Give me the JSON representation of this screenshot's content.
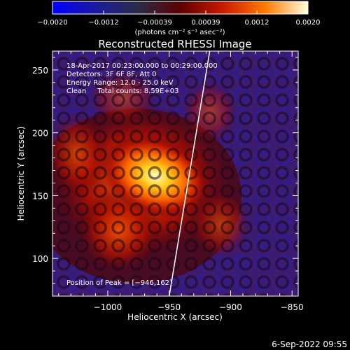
{
  "chart_data": {
    "type": "heatmap",
    "title": "Reconstructed RHESSI Image",
    "colorbar": {
      "ticks": [
        "−0.0020",
        "−0.0012",
        "−0.00039",
        "0.00039",
        "0.0012",
        "0.0020"
      ],
      "units": "(photons cm⁻² s⁻¹ asec⁻²)",
      "range": [
        -0.002,
        0.002
      ],
      "colors": [
        "#0000ff",
        "#1a1aa0",
        "#2c2c48",
        "#5c0000",
        "#c81a00",
        "#ff7a00",
        "#ffffe0"
      ]
    },
    "xlabel": "Heliocentric X (arcsec)",
    "ylabel": "Heliocentric Y (arcsec)",
    "xlim": [
      -1045,
      -845
    ],
    "ylim": [
      70,
      265
    ],
    "xticks": [
      -1000,
      -950,
      -900,
      -850
    ],
    "yticks": [
      100,
      150,
      200,
      250
    ],
    "xtick_labels": [
      "−1000",
      "−950",
      "−900",
      "−850"
    ],
    "ytick_labels": [
      "100",
      "150",
      "200",
      "250"
    ],
    "annotations": [
      "18-Apr-2017 00:23:00.000 to 00:29:00.000",
      "Detectors: 3F 6F 8F, Att 0",
      "Energy Range: 12.0 - 25.0 keV",
      "Clean     Total counts: 8.59E+03"
    ],
    "peak_label": "Position of Peak = [−946,162]",
    "peak": [
      -946,
      162
    ],
    "limb_line": [
      [
        -950,
        70
      ],
      [
        -917,
        265
      ]
    ],
    "background_colors": {
      "outer": "#000000",
      "disk_background": "#2a1650",
      "purple": "#3b1c72"
    }
  },
  "footer": {
    "timestamp": "6-Sep-2022 09:55"
  }
}
